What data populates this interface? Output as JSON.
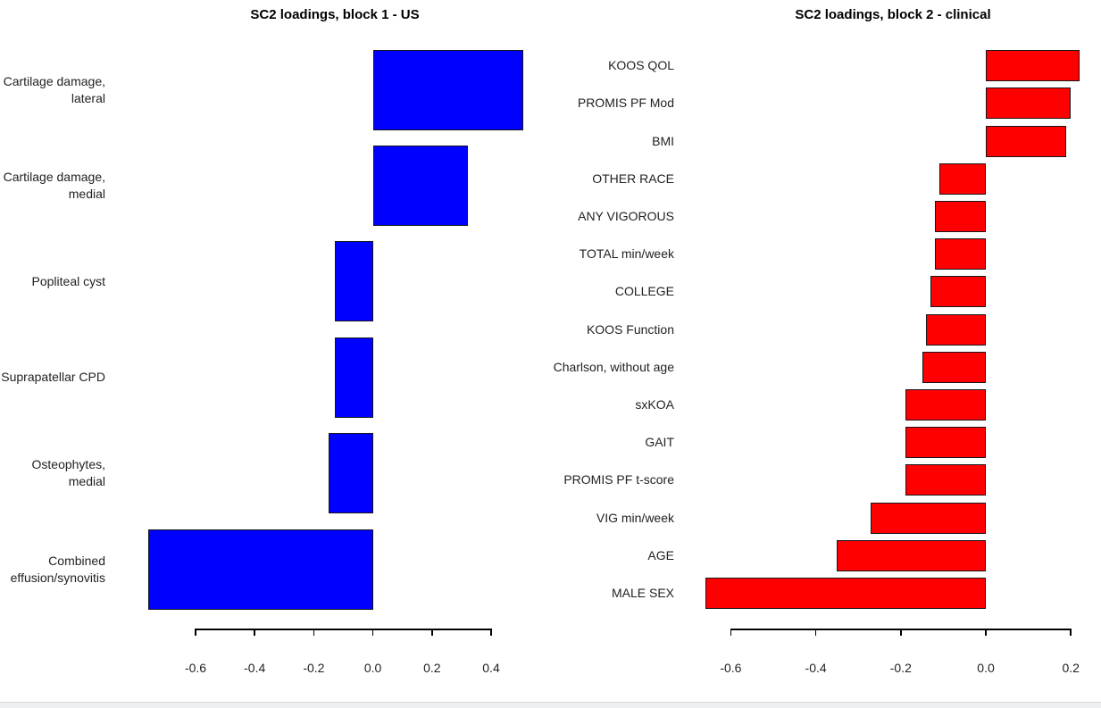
{
  "figure": {
    "background": "#ffffff",
    "bottom_strip_line_color": "#d9dcde",
    "bottom_strip_fill_color": "#edf0f2"
  },
  "chart_data": [
    {
      "type": "bar",
      "orientation": "horizontal",
      "title": "SC2 loadings, block 1 - US",
      "bar_color": "#0000ff",
      "bar_border_color": "#16161d",
      "grid": false,
      "legend": "none",
      "xlabel": "",
      "ylabel": "",
      "xlim": [
        -0.6,
        0.4
      ],
      "xticks": [
        -0.6,
        -0.4,
        -0.2,
        0,
        0.2,
        0.4
      ],
      "categories": [
        "Cartilage damage,\nlateral",
        "Cartilage damage,\nmedial",
        "Popliteal cyst",
        "Suprapatellar CPD",
        "Osteophytes,\nmedial",
        "Combined\neffusion/synovitis"
      ],
      "values": [
        0.51,
        0.32,
        -0.13,
        -0.13,
        -0.15,
        -0.76
      ]
    },
    {
      "type": "bar",
      "orientation": "horizontal",
      "title": "SC2 loadings, block 2 - clinical",
      "bar_color": "#ff0000",
      "bar_border_color": "#16161d",
      "grid": false,
      "legend": "none",
      "xlabel": "",
      "ylabel": "",
      "xlim": [
        -0.6,
        0.2
      ],
      "xticks": [
        -0.6,
        -0.4,
        -0.2,
        0,
        0.2
      ],
      "categories": [
        "KOOS QOL",
        "PROMIS PF Mod",
        "BMI",
        "OTHER RACE",
        "ANY VIGOROUS",
        "TOTAL min/week",
        "COLLEGE",
        "KOOS Function",
        "Charlson, without age",
        "sxKOA",
        "GAIT",
        "PROMIS PF t-score",
        "VIG min/week",
        "AGE",
        "MALE SEX"
      ],
      "values": [
        0.22,
        0.2,
        0.19,
        -0.11,
        -0.12,
        -0.12,
        -0.13,
        -0.14,
        -0.15,
        -0.19,
        -0.19,
        -0.19,
        -0.27,
        -0.35,
        -0.66
      ]
    }
  ]
}
